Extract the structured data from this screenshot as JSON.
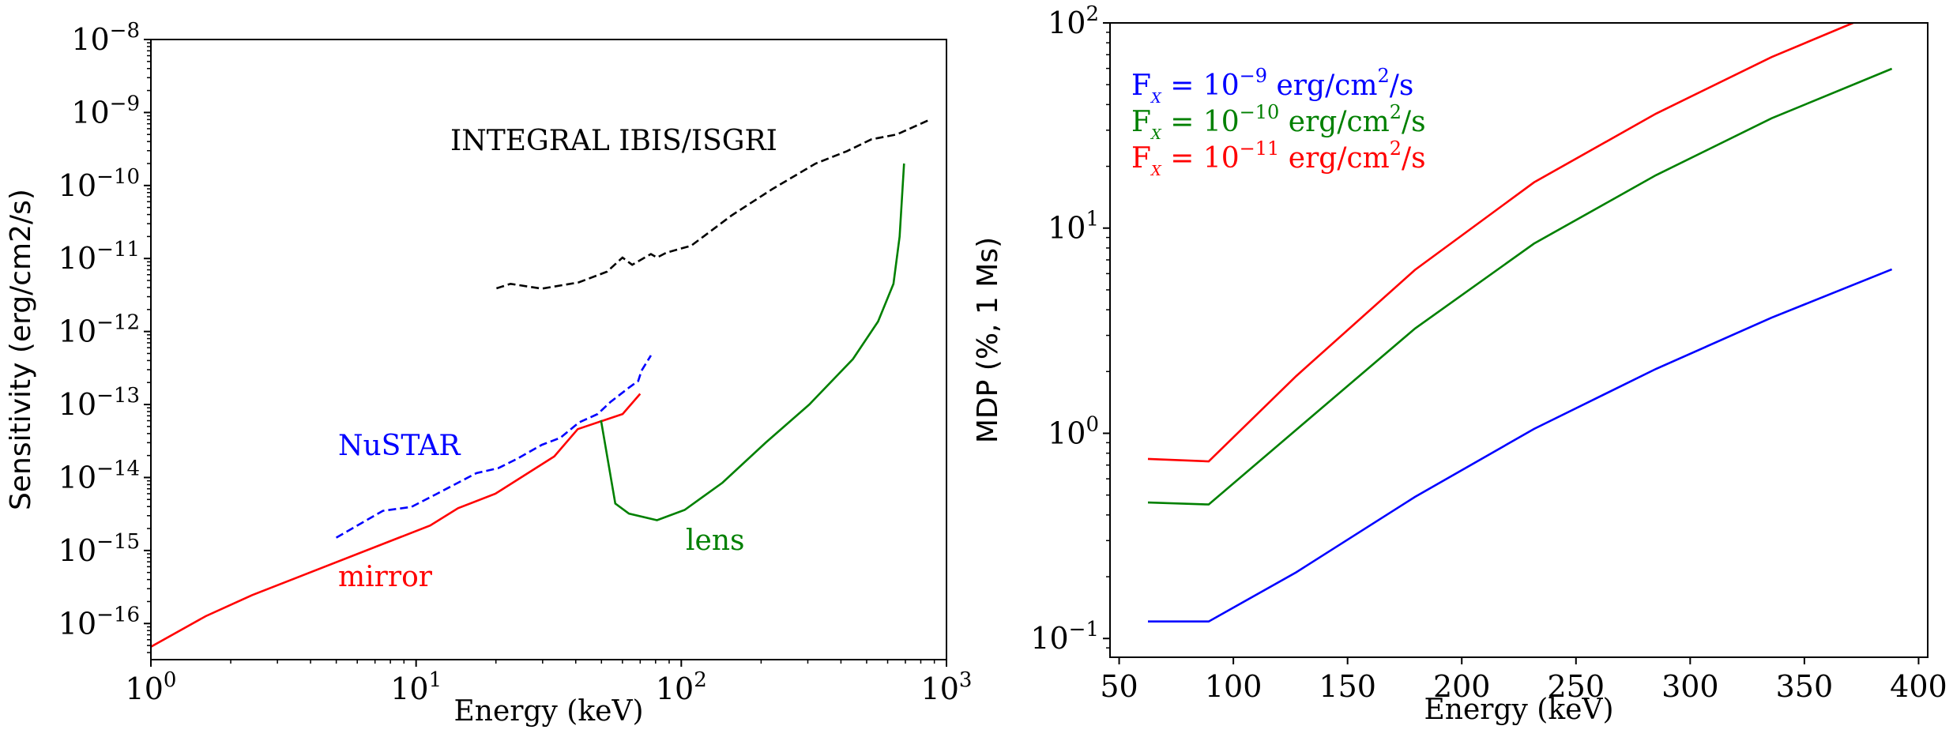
{
  "chart_data": [
    {
      "type": "line",
      "xlabel": "Energy (keV)",
      "ylabel": "Sensitivity (erg/cm2/s)",
      "xscale": "log",
      "yscale": "log",
      "xlim": [
        1,
        1000
      ],
      "ylim": [
        3.2e-17,
        1e-08
      ],
      "xticks": [
        {
          "base": "10",
          "exp": "0",
          "v": 1
        },
        {
          "base": "10",
          "exp": "1",
          "v": 10
        },
        {
          "base": "10",
          "exp": "2",
          "v": 100
        },
        {
          "base": "10",
          "exp": "3",
          "v": 1000
        }
      ],
      "yticks": [
        {
          "base": "10",
          "exp": "−16",
          "v": 1e-16
        },
        {
          "base": "10",
          "exp": "−15",
          "v": 1e-15
        },
        {
          "base": "10",
          "exp": "−14",
          "v": 1e-14
        },
        {
          "base": "10",
          "exp": "−13",
          "v": 1e-13
        },
        {
          "base": "10",
          "exp": "−12",
          "v": 1e-12
        },
        {
          "base": "10",
          "exp": "−11",
          "v": 1e-11
        },
        {
          "base": "10",
          "exp": "−10",
          "v": 1e-10
        },
        {
          "base": "10",
          "exp": "−9",
          "v": 1e-09
        },
        {
          "base": "10",
          "exp": "−8",
          "v": 1e-08
        }
      ],
      "grid": false,
      "series": [
        {
          "name": "mirror",
          "color": "#ff0000",
          "dash": false,
          "x": [
            1,
            1.61,
            2.41,
            11.3,
            14.4,
            19.9,
            33.2,
            40.7,
            60.1,
            70
          ],
          "y": [
            4.8e-17,
            1.26e-16,
            2.45e-16,
            2.2e-15,
            3.8e-15,
            6e-15,
            1.95e-14,
            4.6e-14,
            7.4e-14,
            1.4e-13
          ]
        },
        {
          "name": "NuSTAR",
          "color": "#0000ff",
          "dash": true,
          "x": [
            5,
            7.5,
            9.6,
            11.9,
            16.9,
            20.4,
            24,
            29.8,
            35,
            41.2,
            48.4,
            54,
            63.5,
            68.8,
            70.8,
            76.8
          ],
          "y": [
            1.5e-15,
            3.5e-15,
            3.95e-15,
            5.9e-15,
            1.15e-14,
            1.34e-14,
            1.8e-14,
            2.8e-14,
            3.5e-14,
            5.7e-14,
            7.4e-14,
            1.08e-13,
            1.7e-13,
            2.1e-13,
            2.9e-13,
            4.7e-13
          ]
        },
        {
          "name": "lens",
          "color": "#008000",
          "dash": false,
          "x": [
            49.8,
            56.4,
            63.5,
            81,
            103,
            143,
            208,
            304,
            444,
            552,
            631,
            666,
            692
          ],
          "y": [
            6.1e-14,
            4.4e-15,
            3.2e-15,
            2.6e-15,
            3.6e-15,
            8.5e-15,
            3e-14,
            1e-13,
            4.2e-13,
            1.37e-12,
            4.5e-12,
            2e-11,
            2e-10
          ]
        },
        {
          "name": "INTEGRAL IBIS/ISGRI",
          "color": "#000000",
          "dash": true,
          "x": [
            20.1,
            22.7,
            29.8,
            41,
            52.5,
            60,
            65.3,
            76.8,
            81,
            87.8,
            109,
            155,
            220,
            321,
            421,
            522,
            649,
            873
          ],
          "y": [
            3.9e-12,
            4.5e-12,
            3.86e-12,
            4.7e-12,
            6.6e-12,
            1.03e-11,
            8.2e-12,
            1.15e-11,
            1.03e-11,
            1.2e-11,
            1.5e-11,
            3.9e-11,
            8.9e-11,
            2e-10,
            2.95e-10,
            4.3e-10,
            5e-10,
            8.1e-10
          ]
        }
      ]
    },
    {
      "type": "line",
      "xlabel": "Energy (keV)",
      "ylabel": "MDP (%, 1 Ms)",
      "xscale": "linear",
      "yscale": "log",
      "xlim": [
        46,
        404
      ],
      "ylim": [
        0.081,
        100
      ],
      "xticks": [
        {
          "base": "50",
          "v": 50
        },
        {
          "base": "100",
          "v": 100
        },
        {
          "base": "150",
          "v": 150
        },
        {
          "base": "200",
          "v": 200
        },
        {
          "base": "250",
          "v": 250
        },
        {
          "base": "300",
          "v": 300
        },
        {
          "base": "350",
          "v": 350
        },
        {
          "base": "400",
          "v": 400
        }
      ],
      "yticks": [
        {
          "base": "10",
          "exp": "−1",
          "v": 0.1
        },
        {
          "base": "10",
          "exp": "0",
          "v": 1
        },
        {
          "base": "10",
          "exp": "1",
          "v": 10
        },
        {
          "base": "10",
          "exp": "2",
          "v": 100
        }
      ],
      "grid": false,
      "legend_position": "top-left",
      "series": [
        {
          "name": "F_X = 10^-9 erg/cm^2/s",
          "label": {
            "pre": "F",
            "sub": "X",
            "mid": " = 10",
            "exp": "−9",
            "post1": " erg/cm",
            "exp2": "2",
            "post2": "/s"
          },
          "color": "#0000ff",
          "x": [
            62.6,
            89.2,
            127.5,
            179.5,
            231.6,
            285,
            335.7,
            388.3
          ],
          "y": [
            0.121,
            0.121,
            0.21,
            0.49,
            1.05,
            2.06,
            3.66,
            6.3
          ]
        },
        {
          "name": "F_X = 10^-10 erg/cm^2/s",
          "label": {
            "pre": "F",
            "sub": "X",
            "mid": " = 10",
            "exp": "−10",
            "post1": " erg/cm",
            "exp2": "2",
            "post2": "/s"
          },
          "color": "#008000",
          "x": [
            62.6,
            89.2,
            127.5,
            179.5,
            231.6,
            285,
            335.7,
            388.3
          ],
          "y": [
            0.46,
            0.45,
            1.04,
            3.24,
            8.4,
            18.1,
            34.3,
            59.8
          ]
        },
        {
          "name": "F_X = 10^-11 erg/cm^2/s",
          "label": {
            "pre": "F",
            "sub": "X",
            "mid": " = 10",
            "exp": "−11",
            "post1": " erg/cm",
            "exp2": "2",
            "post2": "/s"
          },
          "color": "#ff0000",
          "x": [
            62.6,
            89.2,
            127.5,
            179.5,
            231.6,
            285,
            335.7,
            371.3,
            388.3
          ],
          "y": [
            0.75,
            0.73,
            1.9,
            6.26,
            16.7,
            36.1,
            68.2,
            100,
            120
          ]
        }
      ]
    }
  ]
}
